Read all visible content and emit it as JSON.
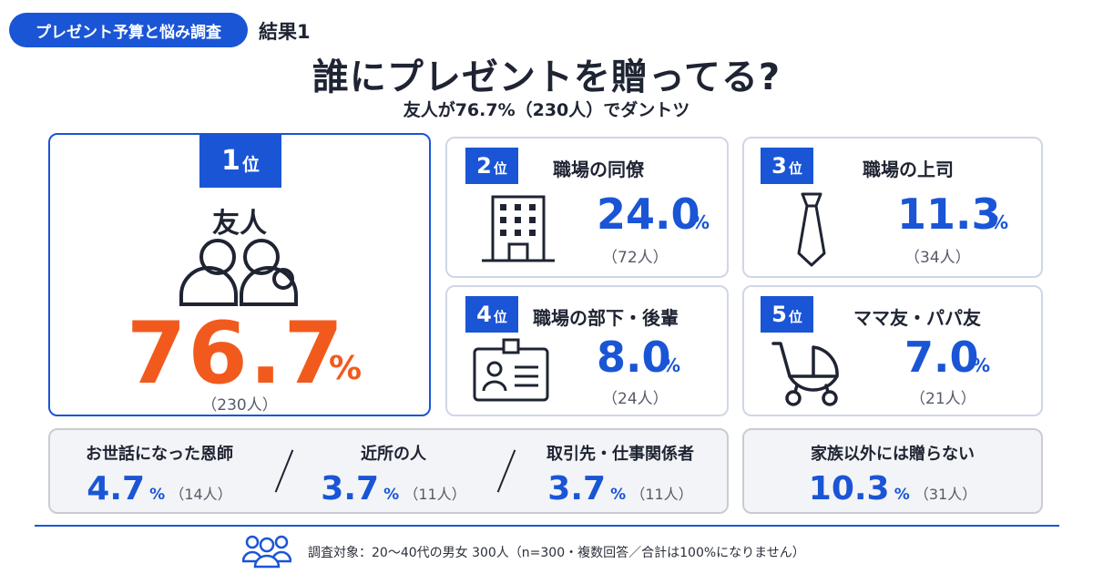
{
  "header": {
    "badge": "プレゼント予算と悩み調査",
    "result_label": "結果1",
    "title": "誰にプレゼントを贈ってる?",
    "subtitle": "友人が76.7%（230人）でダントツ"
  },
  "chart_data": {
    "type": "table",
    "title": "誰にプレゼントを贈ってる?",
    "subtitle": "友人が76.7%（230人）でダントツ",
    "percent_sign": "%",
    "ranked": [
      {
        "rank_num": "1",
        "rank_unit": "位",
        "label": "友人",
        "value": "76.7",
        "count": "（230人）",
        "icon": "people-icon"
      },
      {
        "rank_num": "2",
        "rank_unit": "位",
        "label": "職場の同僚",
        "value": "24.0",
        "count": "（72人）",
        "icon": "office-building-icon"
      },
      {
        "rank_num": "3",
        "rank_unit": "位",
        "label": "職場の上司",
        "value": "11.3",
        "count": "（34人）",
        "icon": "necktie-icon"
      },
      {
        "rank_num": "4",
        "rank_unit": "位",
        "label": "職場の部下・後輩",
        "value": "8.0",
        "count": "（24人）",
        "icon": "id-card-icon"
      },
      {
        "rank_num": "5",
        "rank_unit": "位",
        "label": "ママ友・パパ友",
        "value": "7.0",
        "count": "（21人）",
        "icon": "stroller-icon"
      }
    ],
    "others": [
      {
        "label": "お世話になった恩師",
        "value": "4.7",
        "count": "（14人）"
      },
      {
        "label": "近所の人",
        "value": "3.7",
        "count": "（11人）"
      },
      {
        "label": "取引先・仕事関係者",
        "value": "3.7",
        "count": "（11人）"
      }
    ],
    "none": {
      "label": "家族以外には贈らない",
      "value": "10.3",
      "count": "（31人）"
    }
  },
  "footer": {
    "text": "調査対象：20〜40代の男女 300人（n=300・複数回答／合計は100%になりません）",
    "icon": "group-icon"
  },
  "colors": {
    "accent": "#1a55d6",
    "highlight": "#f25a1d",
    "text": "#1f2433"
  }
}
